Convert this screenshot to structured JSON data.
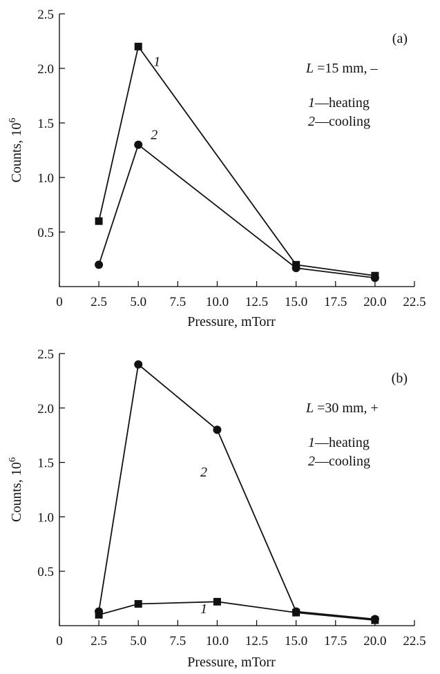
{
  "chart_data": [
    {
      "type": "line",
      "panel_label": "(a)",
      "xlabel": "Pressure, mTorr",
      "ylabel": "Counts, 10",
      "ylabel_sup": "6",
      "xlim": [
        0,
        22.5
      ],
      "ylim": [
        0,
        2.5
      ],
      "xticks": [
        "0",
        "2.5",
        "5.0",
        "7.5",
        "10.0",
        "12.5",
        "15.0",
        "17.5",
        "20.0",
        "22.5"
      ],
      "yticks": [
        "0.5",
        "1.0",
        "1.5",
        "2.0",
        "2.5"
      ],
      "condition": {
        "var": "L",
        "text": " =15 mm, –"
      },
      "legend": [
        {
          "num": "1",
          "text": "—heating"
        },
        {
          "num": "2",
          "text": "—cooling"
        }
      ],
      "series": [
        {
          "label": "1",
          "marker": "square",
          "x": [
            2.5,
            5.0,
            15.0,
            20.0
          ],
          "y": [
            0.6,
            2.2,
            0.2,
            0.1
          ]
        },
        {
          "label": "2",
          "marker": "circle",
          "x": [
            2.5,
            5.0,
            15.0,
            20.0
          ],
          "y": [
            0.2,
            1.3,
            0.17,
            0.08
          ]
        }
      ]
    },
    {
      "type": "line",
      "panel_label": "(b)",
      "xlabel": "Pressure, mTorr",
      "ylabel": "Counts, 10",
      "ylabel_sup": "6",
      "xlim": [
        0,
        22.5
      ],
      "ylim": [
        0,
        2.5
      ],
      "xticks": [
        "0",
        "2.5",
        "5.0",
        "7.5",
        "10.0",
        "12.5",
        "15.0",
        "17.5",
        "20.0",
        "22.5"
      ],
      "yticks": [
        "0.5",
        "1.0",
        "1.5",
        "2.0",
        "2.5"
      ],
      "condition": {
        "var": "L",
        "text": " =30 mm, +"
      },
      "legend": [
        {
          "num": "1",
          "text": "—heating"
        },
        {
          "num": "2",
          "text": "—cooling"
        }
      ],
      "series": [
        {
          "label": "1",
          "marker": "square",
          "x": [
            2.5,
            5.0,
            10.0,
            15.0,
            20.0
          ],
          "y": [
            0.1,
            0.2,
            0.22,
            0.12,
            0.05
          ]
        },
        {
          "label": "2",
          "marker": "circle",
          "x": [
            2.5,
            5.0,
            10.0,
            15.0,
            20.0
          ],
          "y": [
            0.13,
            2.4,
            1.8,
            0.13,
            0.06
          ]
        }
      ]
    }
  ]
}
